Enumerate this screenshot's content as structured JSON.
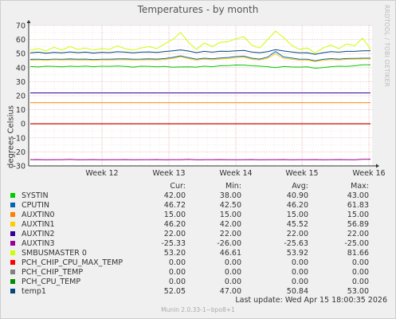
{
  "title": "Temperatures - by month",
  "ylabel": "degrees Celsius",
  "side_text": "RRDTOOL / TOBI OETIKER",
  "last_update": "Last update: Wed Apr 15 18:00:35 2026",
  "footer": "Munin 2.0.33-1~bpo8+1",
  "legend_header": {
    "cur": "Cur:",
    "min": "Min:",
    "avg": "Avg:",
    "max": "Max:"
  },
  "legend": [
    {
      "name": "SYSTIN",
      "color": "#00cc00",
      "cur": "42.00",
      "min": "38.00",
      "avg": "40.90",
      "max": "43.00"
    },
    {
      "name": "CPUTIN",
      "color": "#0066b3",
      "cur": "46.72",
      "min": "42.50",
      "avg": "46.20",
      "max": "61.83"
    },
    {
      "name": "AUXTIN0",
      "color": "#ff8000",
      "cur": "15.00",
      "min": "15.00",
      "avg": "15.00",
      "max": "15.00"
    },
    {
      "name": "AUXTIN1",
      "color": "#ffcc00",
      "cur": "46.20",
      "min": "42.00",
      "avg": "45.52",
      "max": "56.89"
    },
    {
      "name": "AUXTIN2",
      "color": "#330099",
      "cur": "22.00",
      "min": "22.00",
      "avg": "22.00",
      "max": "22.00"
    },
    {
      "name": "AUXTIN3",
      "color": "#990099",
      "cur": "-25.33",
      "min": "-26.00",
      "avg": "-25.63",
      "max": "-25.00"
    },
    {
      "name": "SMBUSMASTER 0",
      "color": "#ccff00",
      "cur": "53.20",
      "min": "46.61",
      "avg": "53.92",
      "max": "81.66"
    },
    {
      "name": "PCH_CHIP_CPU_MAX_TEMP",
      "color": "#ff0000",
      "cur": "0.00",
      "min": "0.00",
      "avg": "0.00",
      "max": "0.00"
    },
    {
      "name": "PCH_CHIP_TEMP",
      "color": "#808080",
      "cur": "0.00",
      "min": "0.00",
      "avg": "0.00",
      "max": "0.00"
    },
    {
      "name": "PCH_CPU_TEMP",
      "color": "#008f00",
      "cur": "0.00",
      "min": "0.00",
      "avg": "0.00",
      "max": "0.00"
    },
    {
      "name": "temp1",
      "color": "#00487d",
      "cur": "52.05",
      "min": "47.00",
      "avg": "50.84",
      "max": "53.00"
    }
  ],
  "chart_data": {
    "type": "line",
    "title": "Temperatures - by month",
    "ylabel": "degrees Celsius",
    "xlabel": "",
    "x_ticks": [
      "Week 12",
      "Week 13",
      "Week 14",
      "Week 15",
      "Week 16"
    ],
    "ylim": [
      -30,
      70
    ],
    "y_ticks": [
      -30,
      -20,
      -10,
      0,
      10,
      20,
      30,
      40,
      50,
      60,
      70
    ],
    "grid": true,
    "series": [
      {
        "name": "SYSTIN",
        "color": "#00cc00",
        "values": [
          40.8,
          40.5,
          41.0,
          40.9,
          40.6,
          41.0,
          40.8,
          41.1,
          40.7,
          41.0,
          40.9,
          41.2,
          40.9,
          40.4,
          41.0,
          40.9,
          40.6,
          40.9,
          40.3,
          40.5,
          40.6,
          40.4,
          41.0,
          40.7,
          41.3,
          41.5,
          41.9,
          41.8,
          41.3,
          41.1,
          40.7,
          40.0,
          40.8,
          40.5,
          40.4,
          40.6,
          39.6,
          40.0,
          40.7,
          41.0,
          40.9,
          41.3,
          42.0,
          42.0
        ]
      },
      {
        "name": "CPUTIN",
        "color": "#0066b3",
        "values": [
          45.9,
          46.0,
          45.7,
          46.1,
          45.9,
          46.2,
          46.0,
          46.1,
          45.7,
          46.0,
          46.0,
          46.2,
          46.3,
          46.0,
          46.1,
          46.3,
          46.1,
          46.5,
          47.3,
          48.4,
          47.1,
          46.0,
          46.7,
          46.3,
          46.8,
          47.2,
          47.9,
          48.2,
          46.7,
          46.1,
          47.5,
          51.5,
          47.6,
          46.8,
          46.0,
          46.0,
          44.9,
          45.9,
          46.4,
          46.1,
          46.5,
          46.6,
          46.7,
          46.7
        ]
      },
      {
        "name": "AUXTIN0",
        "color": "#ff8000",
        "values": [
          15.0,
          15.0,
          15.0,
          15.0,
          15.0,
          15.0,
          15.0,
          15.0,
          15.0,
          15.0,
          15.0,
          15.0,
          15.0,
          15.0,
          15.0,
          15.0,
          15.0,
          15.0,
          15.0,
          15.0,
          15.0,
          15.0,
          15.0,
          15.0,
          15.0,
          15.0,
          15.0,
          15.0,
          15.0,
          15.0,
          15.0,
          15.0,
          15.0,
          15.0,
          15.0,
          15.0,
          15.0,
          15.0,
          15.0,
          15.0,
          15.0,
          15.0,
          15.0,
          15.0
        ]
      },
      {
        "name": "AUXTIN1",
        "color": "#ffcc00",
        "values": [
          45.3,
          45.5,
          45.2,
          45.6,
          45.4,
          45.6,
          45.4,
          45.5,
          45.2,
          45.5,
          45.4,
          45.6,
          45.6,
          45.4,
          45.5,
          45.6,
          45.5,
          45.8,
          46.6,
          47.6,
          46.4,
          45.4,
          46.0,
          45.6,
          46.1,
          46.4,
          47.0,
          47.3,
          46.0,
          45.5,
          46.6,
          49.8,
          46.6,
          46.0,
          45.4,
          45.4,
          44.3,
          45.3,
          45.7,
          45.5,
          45.9,
          46.0,
          46.2,
          46.2
        ]
      },
      {
        "name": "AUXTIN2",
        "color": "#330099",
        "values": [
          22.0,
          22.0,
          22.0,
          22.0,
          22.0,
          22.0,
          22.0,
          22.0,
          22.0,
          22.0,
          22.0,
          22.0,
          22.0,
          22.0,
          22.0,
          22.0,
          22.0,
          22.0,
          22.0,
          22.0,
          22.0,
          22.0,
          22.0,
          22.0,
          22.0,
          22.0,
          22.0,
          22.0,
          22.0,
          22.0,
          22.0,
          22.0,
          22.0,
          22.0,
          22.0,
          22.0,
          22.0,
          22.0,
          22.0,
          22.0,
          22.0,
          22.0,
          22.0,
          22.0
        ]
      },
      {
        "name": "AUXTIN3",
        "color": "#990099",
        "values": [
          -25.6,
          -25.5,
          -25.7,
          -25.6,
          -25.6,
          -25.4,
          -25.7,
          -25.6,
          -25.5,
          -25.7,
          -25.6,
          -25.6,
          -25.5,
          -25.7,
          -25.6,
          -25.6,
          -25.5,
          -25.7,
          -25.6,
          -25.6,
          -25.4,
          -25.7,
          -25.6,
          -25.6,
          -25.5,
          -25.6,
          -25.7,
          -25.6,
          -25.5,
          -25.7,
          -25.6,
          -25.6,
          -25.5,
          -25.7,
          -25.6,
          -25.6,
          -25.5,
          -25.7,
          -25.6,
          -25.5,
          -25.6,
          -25.7,
          -25.3,
          -25.3
        ]
      },
      {
        "name": "SMBUSMASTER 0",
        "color": "#ccff00",
        "values": [
          52.5,
          53.5,
          52.0,
          54.5,
          52.5,
          55.0,
          53.0,
          54.0,
          52.5,
          53.5,
          53.0,
          55.5,
          53.5,
          52.5,
          54.0,
          55.0,
          53.5,
          57.0,
          60.0,
          65.0,
          58.0,
          53.0,
          57.5,
          55.0,
          58.0,
          58.5,
          60.5,
          62.0,
          56.0,
          54.0,
          60.0,
          66.0,
          61.5,
          56.0,
          53.0,
          54.0,
          50.5,
          54.0,
          56.0,
          53.5,
          57.0,
          55.5,
          61.0,
          53.2
        ]
      },
      {
        "name": "PCH_CHIP_CPU_MAX_TEMP",
        "color": "#ff0000",
        "values": [
          0,
          0,
          0,
          0,
          0,
          0,
          0,
          0,
          0,
          0,
          0,
          0,
          0,
          0,
          0,
          0,
          0,
          0,
          0,
          0,
          0,
          0,
          0,
          0,
          0,
          0,
          0,
          0,
          0,
          0,
          0,
          0,
          0,
          0,
          0,
          0,
          0,
          0,
          0,
          0,
          0,
          0,
          0,
          0
        ]
      },
      {
        "name": "PCH_CHIP_TEMP",
        "color": "#808080",
        "values": [
          0,
          0,
          0,
          0,
          0,
          0,
          0,
          0,
          0,
          0,
          0,
          0,
          0,
          0,
          0,
          0,
          0,
          0,
          0,
          0,
          0,
          0,
          0,
          0,
          0,
          0,
          0,
          0,
          0,
          0,
          0,
          0,
          0,
          0,
          0,
          0,
          0,
          0,
          0,
          0,
          0,
          0,
          0,
          0
        ]
      },
      {
        "name": "PCH_CPU_TEMP",
        "color": "#008f00",
        "values": [
          0,
          0,
          0,
          0,
          0,
          0,
          0,
          0,
          0,
          0,
          0,
          0,
          0,
          0,
          0,
          0,
          0,
          0,
          0,
          0,
          0,
          0,
          0,
          0,
          0,
          0,
          0,
          0,
          0,
          0,
          0,
          0,
          0,
          0,
          0,
          0,
          0,
          0,
          0,
          0,
          0,
          0,
          0,
          0
        ]
      },
      {
        "name": "temp1",
        "color": "#00487d",
        "values": [
          50.5,
          51.0,
          50.2,
          50.9,
          50.5,
          51.2,
          50.7,
          51.0,
          50.4,
          50.9,
          50.7,
          51.3,
          51.0,
          50.5,
          51.0,
          51.2,
          50.8,
          51.5,
          52.0,
          52.6,
          51.8,
          50.7,
          51.6,
          51.0,
          51.7,
          51.6,
          52.0,
          52.3,
          51.1,
          50.6,
          51.4,
          52.8,
          51.9,
          51.2,
          50.5,
          50.6,
          49.5,
          50.6,
          51.4,
          51.0,
          51.6,
          51.6,
          52.0,
          52.05
        ]
      }
    ]
  }
}
